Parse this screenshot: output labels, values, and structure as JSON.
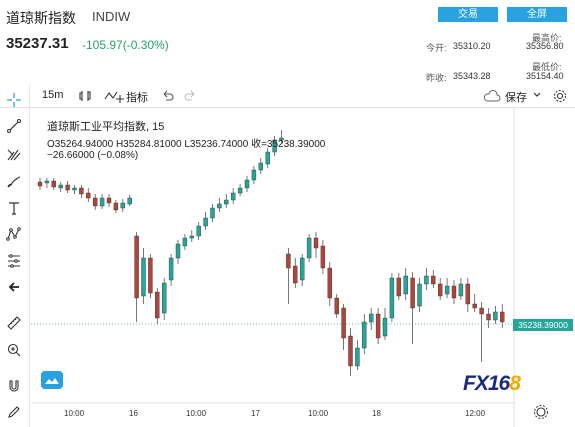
{
  "header": {
    "title": "道琼斯指数",
    "code": "INDIW",
    "trade_btn": "交易",
    "fullscreen_btn": "全屏",
    "price": "35237.31",
    "change": "-105.97(-0.30%)",
    "open_label": "今开:",
    "open_value": "35310.20",
    "prev_label": "昨收:",
    "prev_value": "35343.28",
    "high_label": "最高价:",
    "high_value": "35356.80",
    "low_label": "最低价:",
    "low_value": "35154.40",
    "accent_color": "#29a3e0"
  },
  "toolbar": {
    "interval": "15m",
    "indicators": "指标",
    "save": "保存"
  },
  "sidebar": {
    "icons": [
      "crosshair-icon",
      "trendline-icon",
      "pitchfork-icon",
      "brush-icon",
      "text-icon",
      "pattern-icon",
      "fib-icon",
      "back-arrow-icon",
      "ruler-icon",
      "zoom-in-icon",
      "magnet-icon",
      "lock-pencil-icon"
    ]
  },
  "chart": {
    "legend_title": "道琼斯工业平均指数, 15",
    "legend_ohlc": "O35264.94000 H35284.81000 L35236.74000 收=35238.39000",
    "legend_change": "−26.66000 (−0.08%)",
    "last_price_tag": "35238.39000",
    "x_ticks": [
      "10:00",
      "16",
      "10:00",
      "17",
      "10:00",
      "18",
      "12:00"
    ],
    "up_color": "#26a69a",
    "down_color": "#b0453a",
    "logo_text": "FX16",
    "logo_tail": "8"
  },
  "chart_data": {
    "type": "candlestick",
    "x": [
      "15 10:00",
      "16",
      "16 10:00",
      "17",
      "17 10:00",
      "18",
      "18 12:00"
    ],
    "last_price": 35238.39
  }
}
